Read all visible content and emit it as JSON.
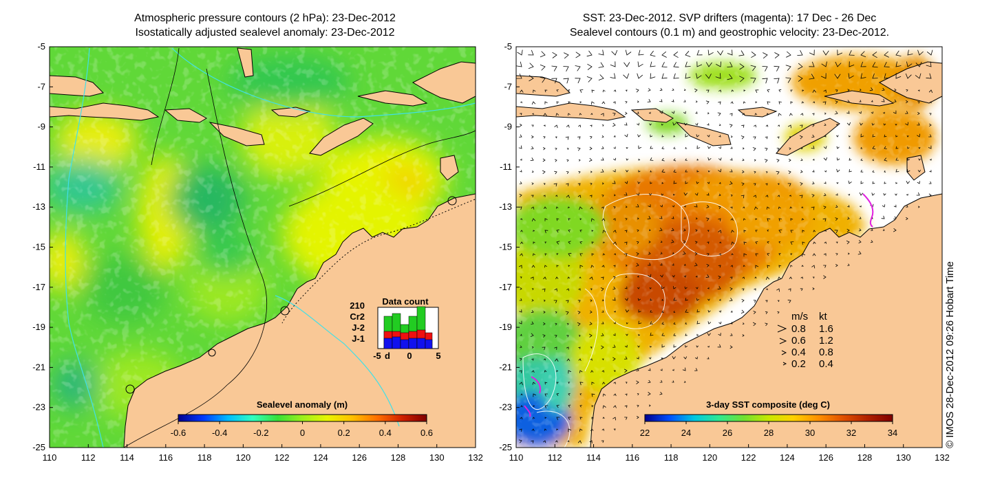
{
  "left_panel": {
    "title_line1": "Atmospheric pressure contours (2 hPa): 23-Dec-2012",
    "title_line2": "Isostatically adjusted sealevel anomaly: 23-Dec-2012",
    "colorbar_label": "Sealevel anomaly (m)",
    "colorbar_ticks": [
      "-0.6",
      "-0.4",
      "-0.2",
      "0",
      "0.2",
      "0.4",
      "0.6"
    ],
    "inset": {
      "title": "Data count",
      "total": "210",
      "legend": [
        {
          "label": "Cr2",
          "color": "#22cc22"
        },
        {
          "label": "J-2",
          "color": "#ee1111"
        },
        {
          "label": "J-1",
          "color": "#1111ee"
        }
      ],
      "x_ticks": [
        "-5",
        "d",
        "0",
        "5"
      ]
    }
  },
  "right_panel": {
    "title_line1": "SST: 23-Dec-2012. SVP drifters (magenta): 17 Dec - 26 Dec",
    "title_line2": "Sealevel contours (0.1 m) and geostrophic velocity: 23-Dec-2012.",
    "colorbar_label": "3-day SST composite (deg C)",
    "colorbar_ticks": [
      "22",
      "24",
      "26",
      "28",
      "30",
      "32",
      "34"
    ],
    "velocity_legend": {
      "header_ms": "m/s",
      "header_kt": "kt",
      "rows": [
        {
          "ms": "0.8",
          "kt": "1.6"
        },
        {
          "ms": "0.6",
          "kt": "1.2"
        },
        {
          "ms": "0.4",
          "kt": "0.8"
        },
        {
          "ms": "0.2",
          "kt": "0.4"
        }
      ]
    }
  },
  "axes": {
    "lat_ticks": [
      "-5",
      "-7",
      "-9",
      "-11",
      "-13",
      "-15",
      "-17",
      "-19",
      "-21",
      "-23",
      "-25"
    ],
    "lon_ticks": [
      "110",
      "112",
      "114",
      "116",
      "118",
      "120",
      "122",
      "124",
      "126",
      "128",
      "130",
      "132"
    ]
  },
  "credit": "© IMOS 28-Dec-2012 09:26 Hobart Time",
  "colors": {
    "land": "#f9c896",
    "sla_scale": [
      "#00008f",
      "#0038ff",
      "#00bcff",
      "#30ffc0",
      "#38e038",
      "#9cf01c",
      "#e8f400",
      "#ffc000",
      "#ff7000",
      "#d02000",
      "#800000"
    ],
    "sst_scale": [
      "#00008f",
      "#0050ff",
      "#00c8e0",
      "#30e890",
      "#70e030",
      "#c8e800",
      "#ffd000",
      "#ff9000",
      "#e05000",
      "#b02000",
      "#800000"
    ]
  }
}
